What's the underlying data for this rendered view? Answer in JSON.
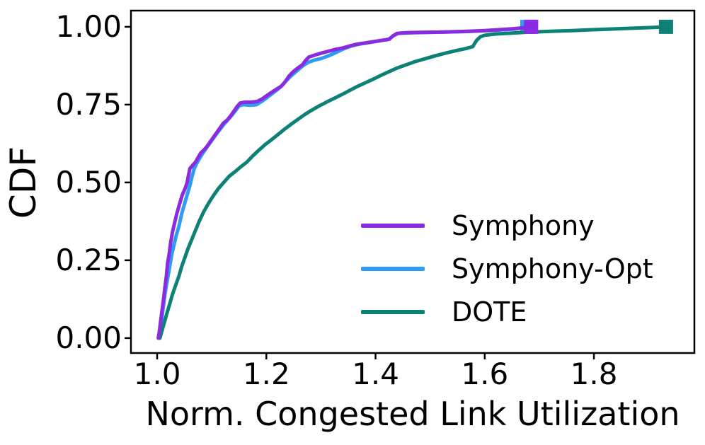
{
  "figure": {
    "background": "#ffffff"
  },
  "legend": {
    "items": [
      {
        "label": "Symphony"
      },
      {
        "label": "Symphony-Opt"
      },
      {
        "label": "DOTE"
      }
    ]
  },
  "chart_data": {
    "type": "line",
    "title": "",
    "xlabel": "Norm. Congested Link Utilization",
    "ylabel": "CDF",
    "xlim": [
      0.952,
      1.984
    ],
    "ylim": [
      -0.048,
      1.052
    ],
    "grid": false,
    "legend_position": "lower right",
    "axis_color": "#000000",
    "x_ticks": [
      {
        "value": 1.0,
        "label": "1.0"
      },
      {
        "value": 1.2,
        "label": "1.2"
      },
      {
        "value": 1.4,
        "label": "1.4"
      },
      {
        "value": 1.6,
        "label": "1.6"
      },
      {
        "value": 1.8,
        "label": "1.8"
      }
    ],
    "y_ticks": [
      {
        "value": 0.0,
        "label": "0.00"
      },
      {
        "value": 0.25,
        "label": "0.25"
      },
      {
        "value": 0.5,
        "label": "0.50"
      },
      {
        "value": 0.75,
        "label": "0.75"
      },
      {
        "value": 1.0,
        "label": "1.00"
      }
    ],
    "series": [
      {
        "name": "Symphony-Opt",
        "color": "#2e9bf5",
        "line_width": 5,
        "end_marker": "square",
        "points": [
          [
            1.003,
            0.0
          ],
          [
            1.006,
            0.03
          ],
          [
            1.009,
            0.07
          ],
          [
            1.012,
            0.11
          ],
          [
            1.015,
            0.15
          ],
          [
            1.019,
            0.19
          ],
          [
            1.023,
            0.23
          ],
          [
            1.027,
            0.27
          ],
          [
            1.031,
            0.3
          ],
          [
            1.035,
            0.33
          ],
          [
            1.04,
            0.36
          ],
          [
            1.045,
            0.4
          ],
          [
            1.05,
            0.43
          ],
          [
            1.055,
            0.46
          ],
          [
            1.06,
            0.49
          ],
          [
            1.064,
            0.52
          ],
          [
            1.068,
            0.545
          ],
          [
            1.072,
            0.56
          ],
          [
            1.077,
            0.575
          ],
          [
            1.082,
            0.59
          ],
          [
            1.088,
            0.605
          ],
          [
            1.094,
            0.62
          ],
          [
            1.1,
            0.635
          ],
          [
            1.107,
            0.652
          ],
          [
            1.114,
            0.668
          ],
          [
            1.121,
            0.684
          ],
          [
            1.129,
            0.7
          ],
          [
            1.137,
            0.716
          ],
          [
            1.144,
            0.732
          ],
          [
            1.15,
            0.746
          ],
          [
            1.158,
            0.75
          ],
          [
            1.17,
            0.748
          ],
          [
            1.182,
            0.75
          ],
          [
            1.193,
            0.762
          ],
          [
            1.203,
            0.775
          ],
          [
            1.214,
            0.79
          ],
          [
            1.225,
            0.805
          ],
          [
            1.236,
            0.826
          ],
          [
            1.247,
            0.845
          ],
          [
            1.257,
            0.86
          ],
          [
            1.267,
            0.875
          ],
          [
            1.277,
            0.886
          ],
          [
            1.288,
            0.893
          ],
          [
            1.3,
            0.898
          ],
          [
            1.313,
            0.906
          ],
          [
            1.326,
            0.916
          ],
          [
            1.34,
            0.928
          ],
          [
            1.355,
            0.938
          ],
          [
            1.372,
            0.945
          ],
          [
            1.39,
            0.95
          ],
          [
            1.408,
            0.955
          ],
          [
            1.424,
            0.96
          ],
          [
            1.434,
            0.973
          ],
          [
            1.442,
            0.979
          ],
          [
            1.47,
            0.981
          ],
          [
            1.52,
            0.983
          ],
          [
            1.57,
            0.985
          ],
          [
            1.62,
            0.989
          ],
          [
            1.655,
            0.993
          ],
          [
            1.678,
            1.0
          ]
        ]
      },
      {
        "name": "DOTE",
        "color": "#0d8176",
        "line_width": 5,
        "end_marker": "square",
        "points": [
          [
            1.005,
            0.0
          ],
          [
            1.009,
            0.025
          ],
          [
            1.013,
            0.05
          ],
          [
            1.018,
            0.08
          ],
          [
            1.023,
            0.11
          ],
          [
            1.028,
            0.14
          ],
          [
            1.034,
            0.17
          ],
          [
            1.04,
            0.2
          ],
          [
            1.045,
            0.23
          ],
          [
            1.05,
            0.255
          ],
          [
            1.056,
            0.285
          ],
          [
            1.063,
            0.315
          ],
          [
            1.07,
            0.345
          ],
          [
            1.077,
            0.375
          ],
          [
            1.085,
            0.405
          ],
          [
            1.093,
            0.43
          ],
          [
            1.102,
            0.455
          ],
          [
            1.112,
            0.48
          ],
          [
            1.122,
            0.5
          ],
          [
            1.132,
            0.52
          ],
          [
            1.143,
            0.535
          ],
          [
            1.153,
            0.55
          ],
          [
            1.164,
            0.565
          ],
          [
            1.175,
            0.585
          ],
          [
            1.187,
            0.605
          ],
          [
            1.198,
            0.622
          ],
          [
            1.21,
            0.638
          ],
          [
            1.222,
            0.655
          ],
          [
            1.234,
            0.672
          ],
          [
            1.246,
            0.688
          ],
          [
            1.258,
            0.703
          ],
          [
            1.27,
            0.718
          ],
          [
            1.283,
            0.732
          ],
          [
            1.296,
            0.745
          ],
          [
            1.31,
            0.758
          ],
          [
            1.324,
            0.77
          ],
          [
            1.338,
            0.782
          ],
          [
            1.352,
            0.795
          ],
          [
            1.366,
            0.808
          ],
          [
            1.381,
            0.82
          ],
          [
            1.396,
            0.832
          ],
          [
            1.411,
            0.845
          ],
          [
            1.425,
            0.856
          ],
          [
            1.44,
            0.868
          ],
          [
            1.456,
            0.878
          ],
          [
            1.472,
            0.888
          ],
          [
            1.49,
            0.897
          ],
          [
            1.508,
            0.906
          ],
          [
            1.527,
            0.915
          ],
          [
            1.546,
            0.923
          ],
          [
            1.565,
            0.93
          ],
          [
            1.578,
            0.936
          ],
          [
            1.585,
            0.956
          ],
          [
            1.592,
            0.968
          ],
          [
            1.6,
            0.973
          ],
          [
            1.62,
            0.977
          ],
          [
            1.65,
            0.98
          ],
          [
            1.68,
            0.983
          ],
          [
            1.7,
            0.984
          ],
          [
            1.73,
            0.986
          ],
          [
            1.76,
            0.988
          ],
          [
            1.79,
            0.99
          ],
          [
            1.82,
            0.992
          ],
          [
            1.85,
            0.994
          ],
          [
            1.88,
            0.996
          ],
          [
            1.91,
            0.998
          ],
          [
            1.932,
            1.0
          ]
        ]
      },
      {
        "name": "Symphony",
        "color": "#8a2be2",
        "line_width": 5,
        "end_marker": "square",
        "points": [
          [
            1.002,
            0.0
          ],
          [
            1.004,
            0.02
          ],
          [
            1.006,
            0.05
          ],
          [
            1.009,
            0.09
          ],
          [
            1.012,
            0.13
          ],
          [
            1.014,
            0.16
          ],
          [
            1.017,
            0.2
          ],
          [
            1.019,
            0.24
          ],
          [
            1.022,
            0.27
          ],
          [
            1.025,
            0.31
          ],
          [
            1.028,
            0.34
          ],
          [
            1.032,
            0.37
          ],
          [
            1.036,
            0.4
          ],
          [
            1.041,
            0.43
          ],
          [
            1.046,
            0.46
          ],
          [
            1.051,
            0.48
          ],
          [
            1.055,
            0.5
          ],
          [
            1.057,
            0.52
          ],
          [
            1.06,
            0.545
          ],
          [
            1.065,
            0.555
          ],
          [
            1.07,
            0.565
          ],
          [
            1.075,
            0.58
          ],
          [
            1.08,
            0.595
          ],
          [
            1.086,
            0.605
          ],
          [
            1.091,
            0.615
          ],
          [
            1.097,
            0.63
          ],
          [
            1.103,
            0.645
          ],
          [
            1.109,
            0.66
          ],
          [
            1.115,
            0.675
          ],
          [
            1.121,
            0.69
          ],
          [
            1.128,
            0.7
          ],
          [
            1.135,
            0.715
          ],
          [
            1.141,
            0.73
          ],
          [
            1.147,
            0.745
          ],
          [
            1.152,
            0.755
          ],
          [
            1.16,
            0.758
          ],
          [
            1.172,
            0.758
          ],
          [
            1.183,
            0.76
          ],
          [
            1.192,
            0.768
          ],
          [
            1.2,
            0.778
          ],
          [
            1.21,
            0.79
          ],
          [
            1.219,
            0.8
          ],
          [
            1.228,
            0.81
          ],
          [
            1.235,
            0.825
          ],
          [
            1.242,
            0.843
          ],
          [
            1.25,
            0.857
          ],
          [
            1.258,
            0.868
          ],
          [
            1.266,
            0.878
          ],
          [
            1.272,
            0.892
          ],
          [
            1.278,
            0.903
          ],
          [
            1.29,
            0.91
          ],
          [
            1.302,
            0.916
          ],
          [
            1.315,
            0.922
          ],
          [
            1.328,
            0.928
          ],
          [
            1.34,
            0.932
          ],
          [
            1.352,
            0.938
          ],
          [
            1.365,
            0.944
          ],
          [
            1.38,
            0.948
          ],
          [
            1.395,
            0.952
          ],
          [
            1.41,
            0.956
          ],
          [
            1.425,
            0.96
          ],
          [
            1.433,
            0.972
          ],
          [
            1.44,
            0.979
          ],
          [
            1.455,
            0.981
          ],
          [
            1.48,
            0.982
          ],
          [
            1.52,
            0.983
          ],
          [
            1.56,
            0.985
          ],
          [
            1.6,
            0.988
          ],
          [
            1.63,
            0.991
          ],
          [
            1.655,
            0.994
          ],
          [
            1.672,
            0.997
          ],
          [
            1.685,
            1.0
          ]
        ]
      }
    ]
  }
}
